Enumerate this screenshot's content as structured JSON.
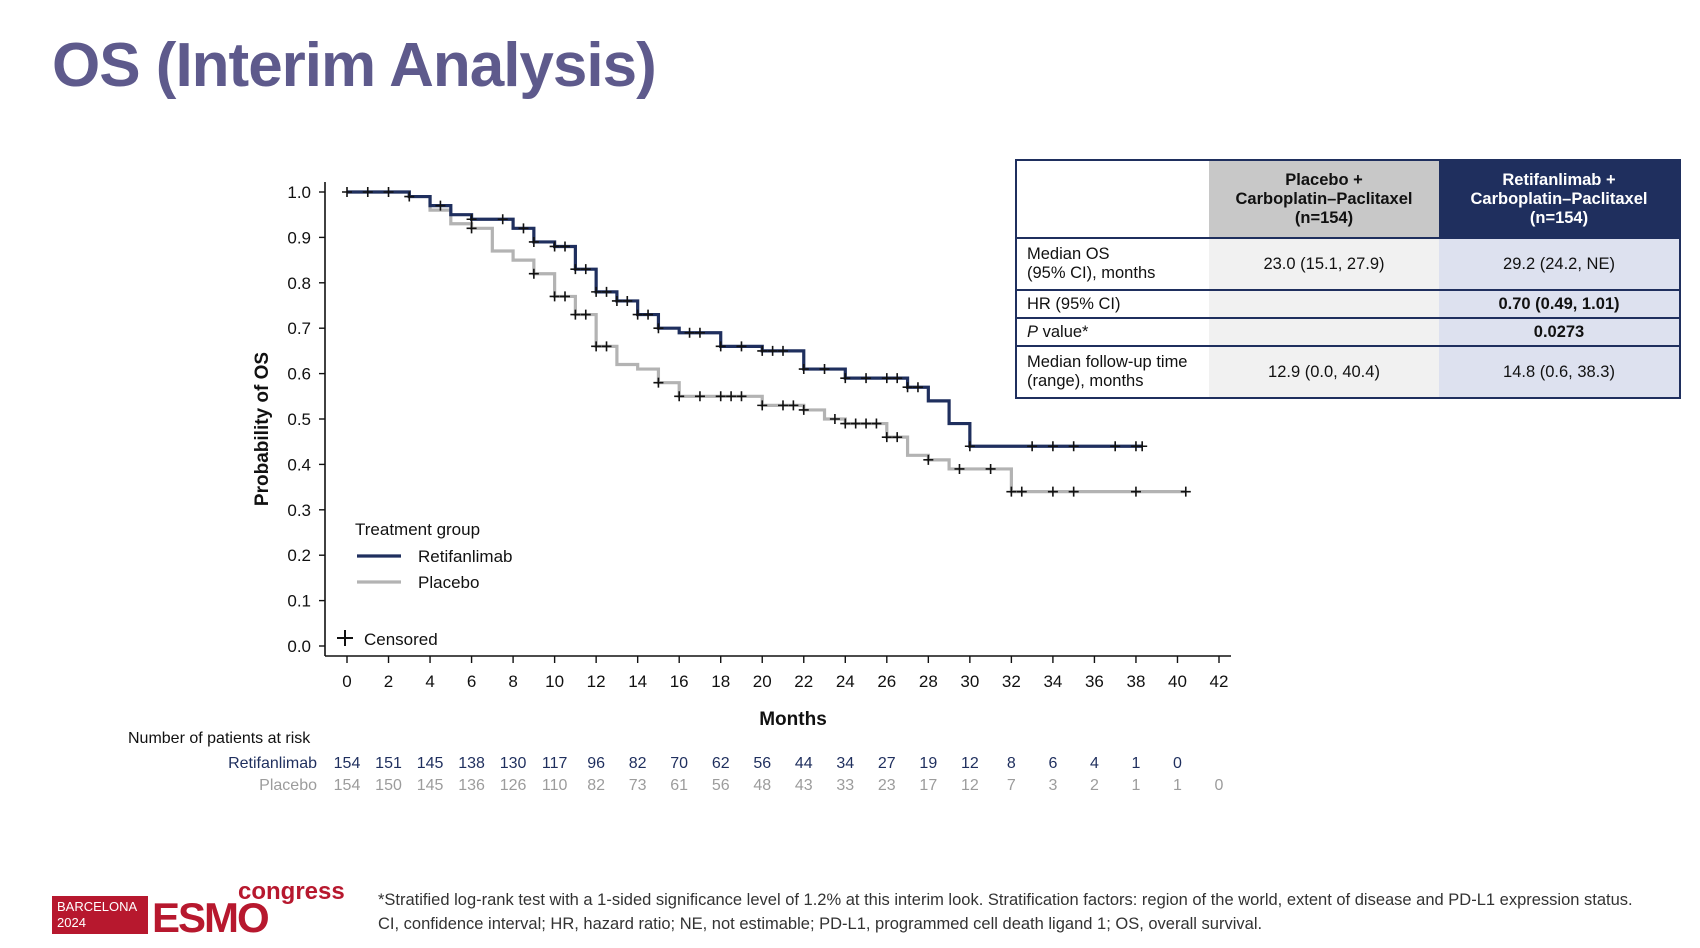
{
  "slide": {
    "title": "OS (Interim Analysis)",
    "footnote_line1": "*Stratified log-rank test with a 1-sided significance level of 1.2% at this interim look. Stratification factors: region of the world, extent of disease and PD-L1 expression status.",
    "footnote_line2": "CI, confidence interval; HR, hazard ratio; NE, not estimable; PD-L1, programmed cell death ligand 1; OS, overall survival."
  },
  "logo": {
    "city": "BARCELONA",
    "year": "2024",
    "word": "ESMO",
    "congress": "congress"
  },
  "table": {
    "placebo_header": [
      "Placebo +",
      "Carboplatin–Paclitaxel",
      "(n=154)"
    ],
    "retif_header": [
      "Retifanlimab +",
      "Carboplatin–Paclitaxel",
      "(n=154)"
    ],
    "rows": [
      {
        "label": [
          "Median OS",
          "(95% CI), months"
        ],
        "placebo": "23.0 (15.1, 27.9)",
        "retif": "29.2 (24.2, NE)"
      },
      {
        "label": [
          "HR (95% CI)"
        ],
        "placebo": "",
        "retif": "0.70 (0.49, 1.01)"
      },
      {
        "label_italic": "P",
        "label_rest": " value*",
        "placebo": "",
        "retif": "0.0273"
      },
      {
        "label": [
          "Median follow-up time",
          "(range), months"
        ],
        "placebo": "12.9 (0.0, 40.4)",
        "retif": "14.8 (0.6, 38.3)"
      }
    ]
  },
  "colors": {
    "retifanlimab": "#1f2f5e",
    "placebo": "#b3b3b3",
    "title": "#5e5a8c"
  },
  "chart_data": {
    "type": "line",
    "step": true,
    "xlabel": "Months",
    "ylabel": "Probability of OS",
    "xlim": [
      0,
      42
    ],
    "ylim": [
      0,
      1
    ],
    "x_ticks": [
      0,
      2,
      4,
      6,
      8,
      10,
      12,
      14,
      16,
      18,
      20,
      22,
      24,
      26,
      28,
      30,
      32,
      34,
      36,
      38,
      40,
      42
    ],
    "y_ticks": [
      "0.0",
      "0.1",
      "0.2",
      "0.3",
      "0.4",
      "0.5",
      "0.6",
      "0.7",
      "0.8",
      "0.9",
      "1.0"
    ],
    "legend_title": "Treatment group",
    "censored_label": "Censored",
    "series": [
      {
        "name": "Retifanlimab",
        "color": "#1f2f5e",
        "x": [
          0,
          3,
          4,
          5,
          6,
          8,
          9,
          10,
          11,
          12,
          13,
          14,
          15,
          16,
          18,
          20,
          22,
          24,
          27,
          28,
          29,
          30,
          38.3
        ],
        "y": [
          1.0,
          0.99,
          0.97,
          0.95,
          0.94,
          0.92,
          0.89,
          0.88,
          0.83,
          0.78,
          0.76,
          0.73,
          0.7,
          0.69,
          0.66,
          0.65,
          0.61,
          0.59,
          0.57,
          0.54,
          0.49,
          0.44,
          0.44
        ],
        "censored_x": [
          0,
          1,
          2,
          3,
          4.5,
          6,
          7.5,
          8.5,
          9,
          10,
          10.5,
          11,
          11.5,
          12,
          12.5,
          13,
          13.5,
          14,
          14.5,
          15,
          16.5,
          17,
          18,
          19,
          20,
          20.5,
          21,
          22,
          23,
          24,
          25,
          26,
          26.5,
          27,
          27.5,
          30,
          33,
          34,
          35,
          37,
          38,
          38.3
        ]
      },
      {
        "name": "Placebo",
        "color": "#b3b3b3",
        "x": [
          0,
          3,
          4,
          5,
          6,
          7,
          8,
          9,
          10,
          11,
          12,
          13,
          14,
          15,
          16,
          20,
          22,
          23,
          24,
          26,
          27,
          28,
          29,
          30,
          31,
          32,
          40.4
        ],
        "y": [
          1.0,
          0.99,
          0.96,
          0.93,
          0.92,
          0.87,
          0.85,
          0.82,
          0.77,
          0.73,
          0.66,
          0.62,
          0.61,
          0.58,
          0.55,
          0.53,
          0.52,
          0.5,
          0.49,
          0.46,
          0.42,
          0.41,
          0.39,
          0.39,
          0.39,
          0.34,
          0.34
        ],
        "censored_x": [
          6,
          9,
          10,
          10.5,
          11,
          11.5,
          12,
          12.5,
          15,
          16,
          17,
          18,
          18.5,
          19,
          20,
          21,
          21.5,
          22,
          23.5,
          24,
          24.5,
          25,
          25.5,
          26,
          26.5,
          28,
          29.5,
          31,
          32,
          32.5,
          34,
          35,
          38,
          40.4
        ]
      }
    ],
    "risk_table": {
      "title": "Number of patients at risk",
      "rows": [
        {
          "name": "Retifanlimab",
          "color": "#1f2f5e",
          "values": [
            "154",
            "151",
            "145",
            "138",
            "130",
            "117",
            "96",
            "82",
            "70",
            "62",
            "56",
            "44",
            "34",
            "27",
            "19",
            "12",
            "8",
            "6",
            "4",
            "1",
            "0"
          ]
        },
        {
          "name": "Placebo",
          "color": "#9c9c9c",
          "values": [
            "154",
            "150",
            "145",
            "136",
            "126",
            "110",
            "82",
            "73",
            "61",
            "56",
            "48",
            "43",
            "33",
            "23",
            "17",
            "12",
            "7",
            "3",
            "2",
            "1",
            "1",
            "0"
          ]
        }
      ]
    }
  }
}
